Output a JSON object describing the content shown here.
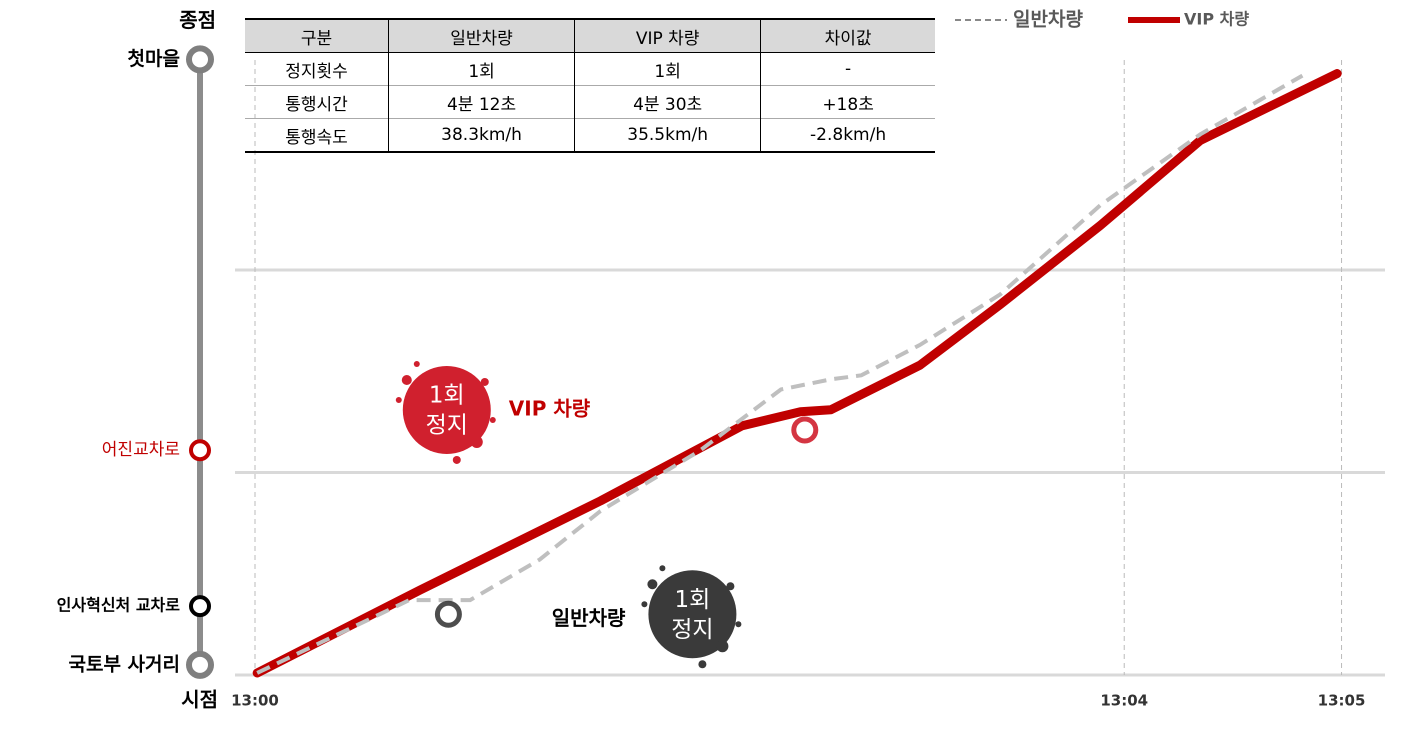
{
  "chart_data": {
    "type": "line",
    "xlim": [
      0,
      5.2
    ],
    "xticks": [
      {
        "value": 0,
        "label": "13:00"
      },
      {
        "value": 4,
        "label": "13:04"
      },
      {
        "value": 5,
        "label": "13:05"
      }
    ],
    "ylim": [
      0,
      3
    ],
    "grid_lines": [
      0,
      1,
      2
    ],
    "series": [
      {
        "name": "일반차량",
        "color": "#bfbfbf",
        "dash": true,
        "x": [
          0.01,
          0.71,
          0.99,
          1.31,
          1.59,
          2.05,
          2.42,
          2.65,
          2.79,
          3.06,
          3.43,
          3.89,
          4.35,
          4.82
        ],
        "values": [
          0.01,
          0.37,
          0.37,
          0.57,
          0.81,
          1.11,
          1.41,
          1.46,
          1.48,
          1.63,
          1.88,
          2.32,
          2.67,
          2.96
        ]
      },
      {
        "name": "VIP 차량",
        "color": "#c00000",
        "dash": false,
        "x": [
          0.01,
          0.76,
          1.59,
          2.24,
          2.51,
          2.65,
          3.06,
          3.43,
          3.89,
          4.35,
          4.98
        ],
        "values": [
          0.01,
          0.42,
          0.86,
          1.23,
          1.3,
          1.31,
          1.53,
          1.83,
          2.22,
          2.64,
          2.97
        ]
      }
    ],
    "stations": [
      {
        "name": "국토부 사거리",
        "y": 0.05,
        "color": "#7f7f7f",
        "label_color": "#000000"
      },
      {
        "name": "인사혁신처 교차로",
        "y": 0.34,
        "color": "#000000",
        "label_color": "#000000"
      },
      {
        "name": "어진교차로",
        "y": 1.11,
        "color": "#c00000",
        "label_color": "#c00000"
      },
      {
        "name": "첫마을",
        "y": 3.04,
        "color": "#7f7f7f",
        "label_color": "#000000"
      }
    ],
    "start_label": "시점",
    "end_label": "종점",
    "stops": [
      {
        "x": 0.89,
        "y": 0.3,
        "color": "#3a3a3a",
        "badge": [
          "1회",
          "정지"
        ],
        "label": "일반차량",
        "label_color": "#000000"
      },
      {
        "x": 2.53,
        "y": 1.21,
        "color": "#d0202e",
        "badge": [
          "1회",
          "정지"
        ],
        "label": "VIP 차량",
        "label_color": "#c00000"
      }
    ],
    "table": {
      "header": [
        "구분",
        "일반차량",
        "VIP 차량",
        "차이값"
      ],
      "rows": [
        [
          "정지횟수",
          "1회",
          "1회",
          "-"
        ],
        [
          "통행시간",
          "4분 12초",
          "4분 30초",
          "+18초"
        ],
        [
          "통행속도",
          "38.3km/h",
          "35.5km/h",
          "-2.8km/h"
        ]
      ]
    }
  }
}
